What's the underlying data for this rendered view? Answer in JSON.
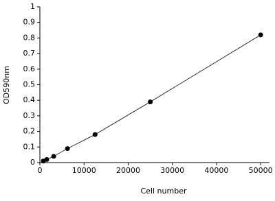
{
  "chart_data": {
    "type": "scatter",
    "x_label": "Cell number",
    "y_label": "OD590nm",
    "x": [
      781,
      1562,
      3125,
      6250,
      12500,
      25000,
      50000
    ],
    "series": [
      {
        "color": "#000000",
        "values": [
          0.01,
          0.02,
          0.04,
          0.09,
          0.18,
          0.39,
          0.82
        ]
      }
    ],
    "xlim": [
      0,
      52000
    ],
    "ylim": [
      0,
      1
    ],
    "xticks": [
      0,
      10000,
      20000,
      30000,
      40000,
      50000
    ],
    "yticks": [
      0,
      0.1,
      0.2,
      0.3,
      0.4,
      0.5,
      0.6,
      0.7,
      0.8,
      0.9,
      1
    ],
    "grid": false
  }
}
